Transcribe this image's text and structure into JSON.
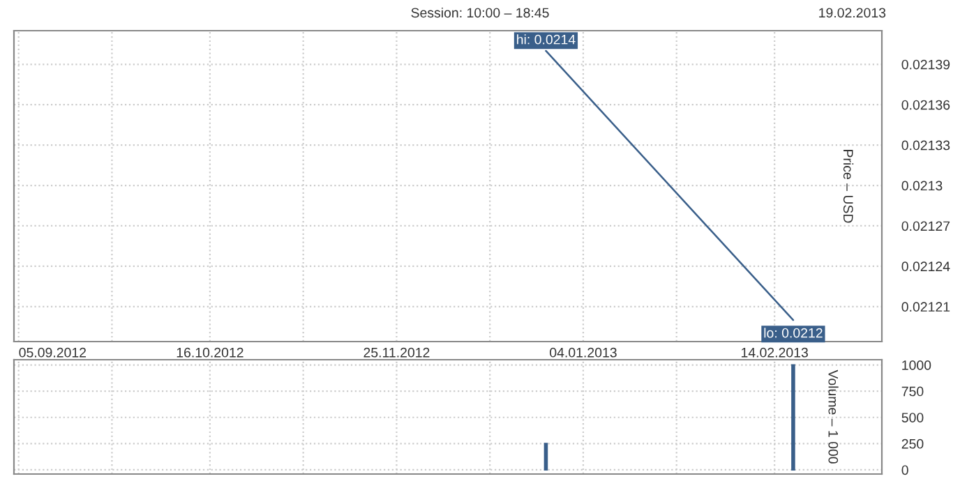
{
  "chart_data": [
    {
      "type": "line",
      "title": "Session: 10:00 – 18:45",
      "ylabel": "Price – USD",
      "x": [
        "2012-12-27",
        "2013-02-18"
      ],
      "series": [
        {
          "color": "#3a5f8a",
          "values": [
            0.0214,
            0.0212
          ]
        }
      ],
      "annotations": [
        "19.02.2013",
        {
          "text": "hi: 0.0214",
          "x": "2012-12-27",
          "y": 0.0214
        },
        {
          "text": "lo: 0.0212",
          "x": "2013-02-18",
          "y": 0.0212
        }
      ],
      "xlim": [
        "2012-09-04",
        "2013-03-09"
      ],
      "ylim": [
        0.021184,
        0.021415
      ],
      "xticks": [
        {
          "value": "2012-09-05",
          "label": "05.09.2012"
        },
        {
          "value": "2012-09-25",
          "label": null
        },
        {
          "value": "2012-10-16",
          "label": "16.10.2012"
        },
        {
          "value": "2012-11-05",
          "label": null
        },
        {
          "value": "2012-11-25",
          "label": "25.11.2012"
        },
        {
          "value": "2012-12-15",
          "label": null
        },
        {
          "value": "2013-01-04",
          "label": "04.01.2013"
        },
        {
          "value": "2013-01-24",
          "label": null
        },
        {
          "value": "2013-02-14",
          "label": "14.02.2013"
        }
      ],
      "yticks": [
        0.02121,
        0.02124,
        0.02127,
        0.0213,
        0.02133,
        0.02136,
        0.02139
      ],
      "grid": true
    },
    {
      "type": "bar",
      "ylabel": "Volume – 1 000",
      "x": [
        "2012-12-27",
        "2013-02-18"
      ],
      "series": [
        {
          "color": "#3a5f8a",
          "values": [
            250,
            1000
          ]
        }
      ],
      "xlim": [
        "2012-09-04",
        "2013-03-09"
      ],
      "ylim": [
        -40,
        1050
      ],
      "xticks": [
        {
          "value": "2012-09-05",
          "label": null
        },
        {
          "value": "2012-09-25",
          "label": null
        },
        {
          "value": "2012-10-16",
          "label": null
        },
        {
          "value": "2012-11-05",
          "label": null
        },
        {
          "value": "2012-11-25",
          "label": null
        },
        {
          "value": "2012-12-15",
          "label": null
        },
        {
          "value": "2013-01-04",
          "label": null
        },
        {
          "value": "2013-01-24",
          "label": null
        },
        {
          "value": "2013-02-14",
          "label": null
        }
      ],
      "yticks": [
        0,
        250,
        500,
        750,
        1000
      ],
      "grid": true,
      "tick_labels": "y"
    }
  ]
}
